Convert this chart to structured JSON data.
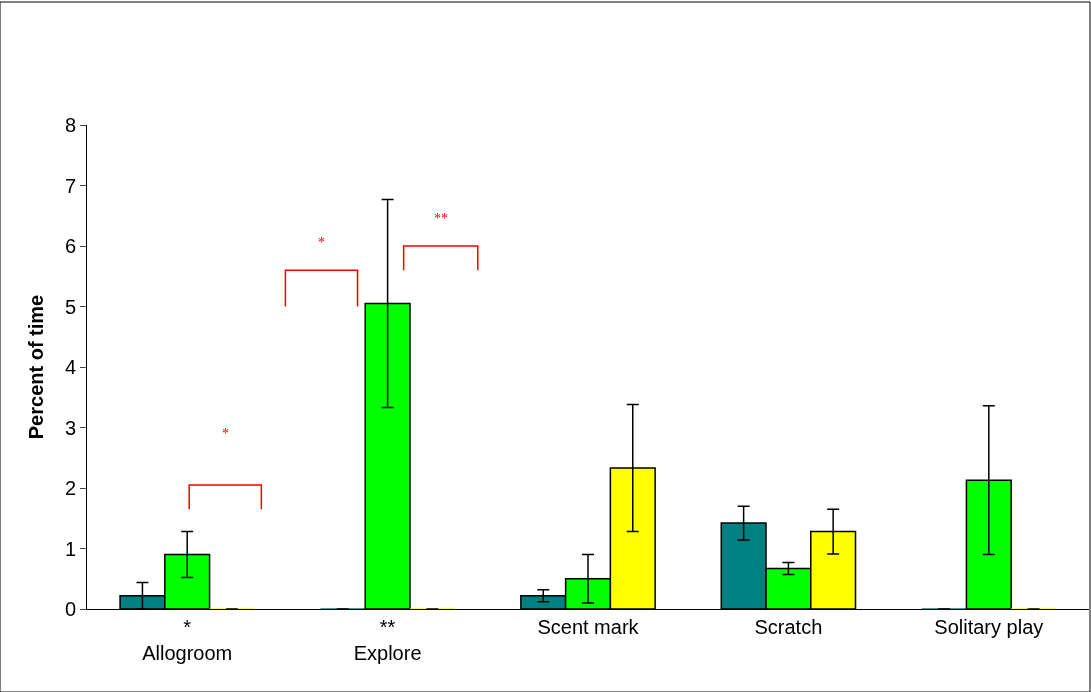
{
  "chart_data": {
    "type": "bar",
    "ylabel": "Percent of time",
    "categories": [
      "*\nAllogroom",
      "**\nExplore",
      "Scent mark",
      "Scratch",
      "Solitary play"
    ],
    "series": [
      {
        "color": "#008080",
        "values": [
          0.22,
          0,
          0.22,
          1.42,
          0
        ],
        "errors": [
          0.22,
          null,
          0.1,
          0.28,
          null
        ]
      },
      {
        "color": "#00ff00",
        "values": [
          0.9,
          5.05,
          0.5,
          0.67,
          2.13
        ],
        "errors": [
          0.38,
          1.72,
          0.4,
          0.1,
          1.23
        ]
      },
      {
        "color": "#ffff00",
        "values": [
          0,
          0,
          2.33,
          1.28,
          0
        ],
        "errors": [
          null,
          null,
          1.05,
          0.37,
          null
        ]
      }
    ],
    "ylim": [
      0,
      8
    ],
    "yticks": [
      0,
      1,
      2,
      3,
      4,
      5,
      6,
      7,
      8
    ],
    "legend": false,
    "annotations": [
      "*",
      "*",
      "**"
    ]
  }
}
